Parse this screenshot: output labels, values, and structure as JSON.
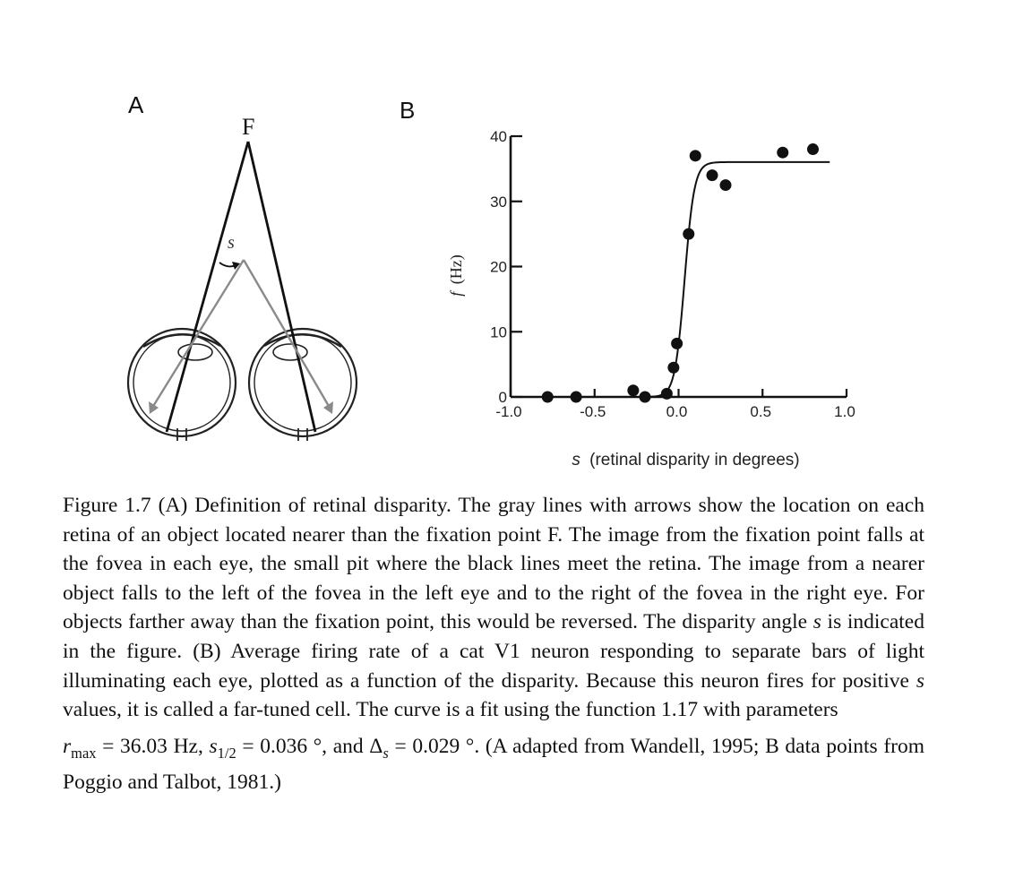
{
  "panels": {
    "a_label": "A",
    "b_label": "B"
  },
  "diagram": {
    "fixation_label": "F",
    "disparity_label": "s",
    "colors": {
      "black_lines": "#111111",
      "gray_lines": "#8a8a8a"
    }
  },
  "chart_data": {
    "type": "scatter",
    "xlabel_symbol": "s",
    "xlabel_text": "(retinal disparity in degrees)",
    "ylabel_symbol": "f",
    "ylabel_text": "(Hz)",
    "xlim": [
      -1.0,
      1.0
    ],
    "ylim": [
      0,
      40
    ],
    "x_ticks": [
      "-1.0",
      "-0.5",
      "0.0",
      "0.5",
      "1.0"
    ],
    "y_ticks": [
      "0",
      "10",
      "20",
      "30",
      "40"
    ],
    "points": [
      {
        "x": -0.78,
        "y": 0
      },
      {
        "x": -0.61,
        "y": 0
      },
      {
        "x": -0.27,
        "y": 1
      },
      {
        "x": -0.2,
        "y": 0
      },
      {
        "x": -0.07,
        "y": 0.5
      },
      {
        "x": -0.03,
        "y": 4.5
      },
      {
        "x": -0.01,
        "y": 8.2
      },
      {
        "x": 0.06,
        "y": 25
      },
      {
        "x": 0.1,
        "y": 37
      },
      {
        "x": 0.2,
        "y": 34
      },
      {
        "x": 0.28,
        "y": 32.5
      },
      {
        "x": 0.62,
        "y": 37.5
      },
      {
        "x": 0.8,
        "y": 38
      }
    ],
    "fit": {
      "rmax": 36.03,
      "s_half": 0.036,
      "delta_s": 0.029
    }
  },
  "caption": {
    "main": "Figure 1.7 (A) Definition of retinal disparity. The gray lines with arrows show the location on each retina of an object located nearer than the fixation point F. The image from the fixation point falls at the fovea in each eye, the small pit where the black lines meet the retina. The image from a nearer object falls to the left of the fovea in the left eye and to the right of the fovea in the right eye. For objects farther away than the fixation point, this would be reversed. The disparity angle",
    "s1": "s",
    "mid": "is indicated in the figure. (B) Average firing rate of a cat V1 neuron responding to separate bars of light illuminating each eye, plotted as a function of the disparity. Because this neuron fires for positive",
    "s2": "s",
    "tail": "values, it is called a far-tuned cell. The curve is a fit using the function 1.17 with parameters",
    "r": "r",
    "r_sub": "max",
    "r_val": " = 36.03 Hz, ",
    "s3": "s",
    "s_sub": "1/2",
    "s_val": " = 0.036 °, and ",
    "delta": "Δ",
    "delta_sub": "s",
    "delta_val": " = 0.029 °. (A adapted from Wandell, 1995; B data points from Poggio and Talbot, 1981.)"
  }
}
